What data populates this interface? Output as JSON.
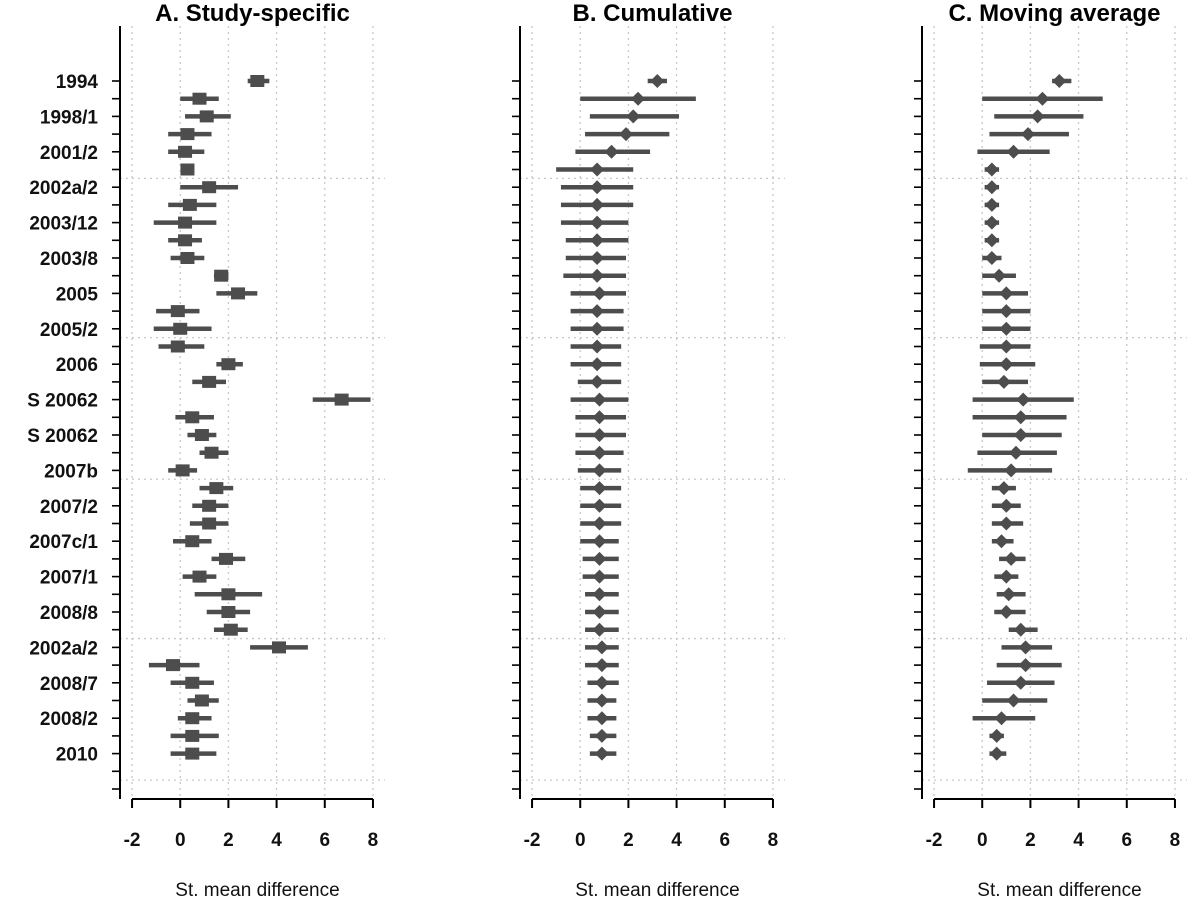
{
  "chart_data": [
    {
      "type": "forest",
      "title": "A. Study-specific",
      "xlabel": "St. mean difference",
      "xlim": [
        -2.5,
        8.5
      ],
      "xticks": [
        -2,
        0,
        2,
        4,
        6,
        8
      ],
      "xtick_labels": [
        "-2",
        "0",
        "2",
        "4",
        "6",
        "8"
      ],
      "grid": true,
      "ylabels": [
        "1994",
        "1998/1",
        "2001/2",
        "2002a/2",
        "2003/12",
        "2003/8",
        "2005",
        "2005/2",
        "2006",
        "S 20062",
        "S 20062",
        "2007b",
        "2007/2",
        "2007c/1",
        "2007/1",
        "2008/8",
        "2002a/2",
        "2008/7",
        "2008/2",
        "2010"
      ],
      "ylabel_rows": [
        0,
        2,
        4,
        6,
        8,
        10,
        12,
        14,
        16,
        18,
        20,
        22,
        24,
        26,
        28,
        30,
        32,
        34,
        36,
        38
      ],
      "estimates": [
        3.2,
        0.8,
        1.1,
        0.3,
        0.2,
        0.3,
        1.2,
        0.4,
        0.2,
        0.2,
        0.3,
        1.7,
        2.4,
        -0.1,
        0.0,
        -0.1,
        2.0,
        1.2,
        6.7,
        0.5,
        0.9,
        1.3,
        0.1,
        1.5,
        1.2,
        1.2,
        0.5,
        1.9,
        0.8,
        2.0,
        2.0,
        2.1,
        4.1,
        -0.3,
        0.5,
        0.9,
        0.5,
        0.5,
        0.5
      ],
      "ci_low": [
        2.8,
        0.0,
        0.2,
        -0.5,
        -0.5,
        0.3,
        0.0,
        -0.5,
        -1.1,
        -0.5,
        -0.4,
        1.4,
        1.5,
        -1.0,
        -1.1,
        -0.9,
        1.5,
        0.5,
        5.5,
        -0.2,
        0.3,
        0.8,
        -0.5,
        0.8,
        0.5,
        0.4,
        -0.3,
        1.3,
        0.1,
        0.6,
        1.1,
        1.4,
        2.9,
        -1.3,
        -0.4,
        0.3,
        -0.1,
        -0.4,
        -0.4
      ],
      "ci_high": [
        3.7,
        1.6,
        2.1,
        1.3,
        1.0,
        0.3,
        2.4,
        1.5,
        1.5,
        0.9,
        1.0,
        2.0,
        3.2,
        0.8,
        1.3,
        1.0,
        2.6,
        1.9,
        7.9,
        1.4,
        1.5,
        2.0,
        0.7,
        2.2,
        2.0,
        2.0,
        1.3,
        2.7,
        1.5,
        3.4,
        2.9,
        2.8,
        5.3,
        0.8,
        1.4,
        1.6,
        1.3,
        1.6,
        1.5
      ],
      "hgrid_rows": [
        5.5,
        14.5,
        22.5,
        31.5,
        39.5
      ]
    },
    {
      "type": "forest",
      "title": "B. Cumulative",
      "xlabel": "St. mean difference",
      "xlim": [
        -2.5,
        8.5
      ],
      "xticks": [
        -2,
        0,
        2,
        4,
        6,
        8
      ],
      "xtick_labels": [
        "-2",
        "0",
        "2",
        "4",
        "6",
        "8"
      ],
      "grid": true,
      "estimates": [
        3.2,
        2.4,
        2.2,
        1.9,
        1.3,
        0.7,
        0.7,
        0.7,
        0.7,
        0.7,
        0.7,
        0.7,
        0.8,
        0.7,
        0.7,
        0.7,
        0.7,
        0.7,
        0.8,
        0.8,
        0.8,
        0.8,
        0.8,
        0.8,
        0.8,
        0.8,
        0.8,
        0.8,
        0.8,
        0.8,
        0.8,
        0.8,
        0.9,
        0.9,
        0.9,
        0.9,
        0.9,
        0.9,
        0.9
      ],
      "ci_low": [
        2.8,
        0.0,
        0.4,
        0.2,
        -0.2,
        -1.0,
        -0.8,
        -0.8,
        -0.8,
        -0.6,
        -0.6,
        -0.7,
        -0.4,
        -0.4,
        -0.4,
        -0.4,
        -0.4,
        -0.1,
        -0.4,
        -0.2,
        -0.2,
        -0.2,
        -0.1,
        0.0,
        0.0,
        0.0,
        0.0,
        0.1,
        0.1,
        0.2,
        0.2,
        0.2,
        0.2,
        0.2,
        0.3,
        0.3,
        0.3,
        0.4,
        0.4
      ],
      "ci_high": [
        3.6,
        4.8,
        4.1,
        3.7,
        2.9,
        2.2,
        2.2,
        2.2,
        2.0,
        2.0,
        1.9,
        1.9,
        1.9,
        1.8,
        1.8,
        1.7,
        1.7,
        1.7,
        2.0,
        1.9,
        1.9,
        1.8,
        1.7,
        1.7,
        1.7,
        1.7,
        1.6,
        1.6,
        1.6,
        1.6,
        1.6,
        1.6,
        1.6,
        1.6,
        1.6,
        1.5,
        1.5,
        1.5,
        1.5
      ],
      "hgrid_rows": [
        5.5,
        14.5,
        22.5,
        31.5,
        39.5
      ]
    },
    {
      "type": "forest",
      "title": "C. Moving average",
      "xlabel": "St. mean difference",
      "xlim": [
        -2.5,
        8.5
      ],
      "xticks": [
        -2,
        0,
        2,
        4,
        6,
        8
      ],
      "xtick_labels": [
        "-2",
        "0",
        "2",
        "4",
        "6",
        "8"
      ],
      "grid": true,
      "estimates": [
        3.2,
        2.5,
        2.3,
        1.9,
        1.3,
        0.4,
        0.4,
        0.4,
        0.4,
        0.4,
        0.4,
        0.7,
        1.0,
        1.0,
        1.0,
        1.0,
        1.0,
        0.9,
        1.7,
        1.6,
        1.6,
        1.4,
        1.2,
        0.9,
        1.0,
        1.0,
        0.8,
        1.2,
        1.0,
        1.1,
        1.0,
        1.6,
        1.8,
        1.8,
        1.6,
        1.3,
        0.8,
        0.6,
        0.6
      ],
      "ci_low": [
        2.9,
        0.0,
        0.5,
        0.3,
        -0.2,
        0.1,
        0.1,
        0.1,
        0.1,
        0.1,
        0.0,
        0.0,
        0.0,
        0.0,
        0.0,
        -0.1,
        -0.1,
        0.0,
        -0.4,
        -0.4,
        0.0,
        -0.2,
        -0.6,
        0.4,
        0.4,
        0.4,
        0.4,
        0.7,
        0.5,
        0.6,
        0.5,
        1.1,
        0.8,
        0.6,
        0.2,
        0.0,
        -0.4,
        0.3,
        0.3
      ],
      "ci_high": [
        3.7,
        5.0,
        4.2,
        3.6,
        2.8,
        0.7,
        0.7,
        0.7,
        0.7,
        0.7,
        0.8,
        1.4,
        1.9,
        2.0,
        2.0,
        2.0,
        2.2,
        1.9,
        3.8,
        3.5,
        3.3,
        3.1,
        2.9,
        1.4,
        1.6,
        1.7,
        1.3,
        1.8,
        1.5,
        1.8,
        1.8,
        2.3,
        2.9,
        3.3,
        3.0,
        2.7,
        2.2,
        0.9,
        1.0
      ],
      "hgrid_rows": [
        5.5,
        14.5,
        22.5,
        31.5,
        39.5
      ]
    }
  ],
  "colors": {
    "marker": "#4d4d4d",
    "grid": "#c8c8c8",
    "axis": "#000000"
  }
}
